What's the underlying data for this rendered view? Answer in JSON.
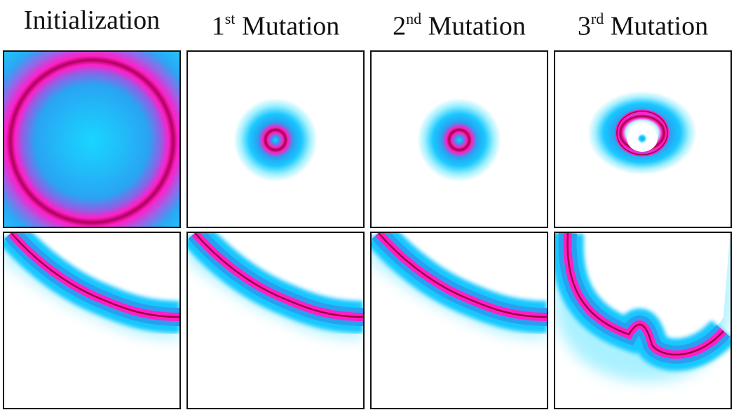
{
  "columns": [
    {
      "label_main": "Initialization",
      "ordinal": "",
      "ordinal_suffix": "",
      "label_rest": ""
    },
    {
      "label_main": "",
      "ordinal": "1",
      "ordinal_suffix": "st",
      "label_rest": " Mutation"
    },
    {
      "label_main": "",
      "ordinal": "2",
      "ordinal_suffix": "nd",
      "label_rest": " Mutation"
    },
    {
      "label_main": "",
      "ordinal": "3",
      "ordinal_suffix": "rd",
      "label_rest": " Mutation"
    }
  ],
  "colors": {
    "magenta": "#ff1fc8",
    "deep_magenta": "#a0003c",
    "blue": "#1aa0f0",
    "cyan": "#19d6ff",
    "light_cyan": "#bff4ff",
    "frame": "#111111"
  }
}
